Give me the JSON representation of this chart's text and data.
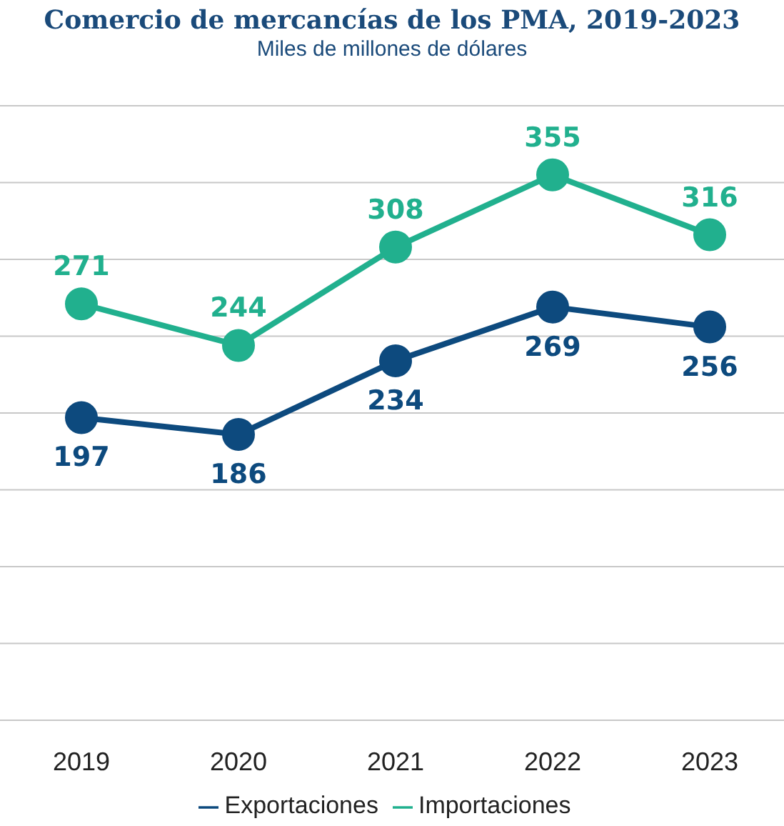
{
  "chart_data": {
    "type": "line",
    "title": "Comercio de mercancías de los PMA, 2019-2023",
    "subtitle": "Miles de millones de dólares",
    "categories": [
      "2019",
      "2020",
      "2021",
      "2022",
      "2023"
    ],
    "series": [
      {
        "name": "Exportaciones",
        "color": "#0d4a7e",
        "values": [
          197,
          186,
          234,
          269,
          256
        ]
      },
      {
        "name": "Importaciones",
        "color": "#21b08e",
        "values": [
          271,
          244,
          308,
          355,
          316
        ]
      }
    ],
    "ylim": [
      0,
      400
    ],
    "tick_labels": "x",
    "grid": "y",
    "legend": "bottom",
    "marker": "circle",
    "line_style": "solid",
    "data_labels": true
  }
}
